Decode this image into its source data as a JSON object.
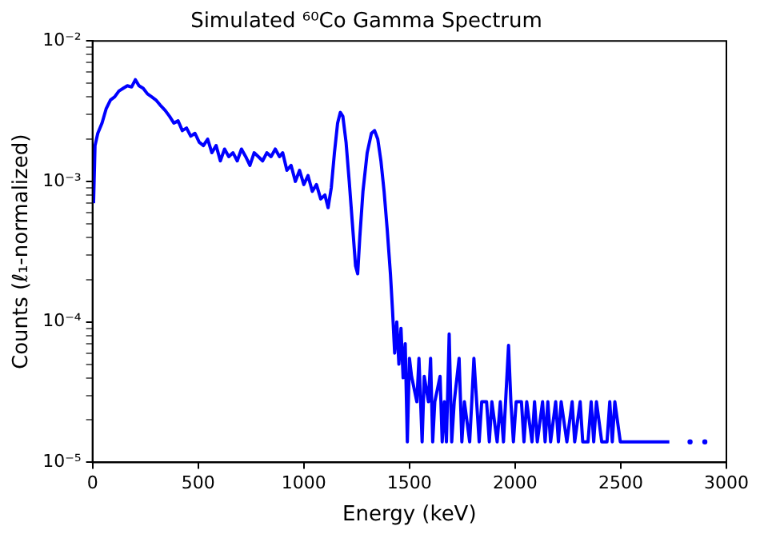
{
  "chart_data": {
    "type": "line",
    "title": "Simulated ⁶⁰Co Gamma Spectrum",
    "xlabel": "Energy (keV)",
    "ylabel": "Counts (ℓ₁-normalized)",
    "log": "y",
    "grid": false,
    "legend": false,
    "marker": "none",
    "line_style": "solid",
    "xlim": [
      0,
      3000
    ],
    "xticks": [
      0,
      500,
      1000,
      1500,
      2000,
      2500,
      3000
    ],
    "ylim": [
      1e-05,
      0.01
    ],
    "yticks": [
      {
        "value": 1e-05,
        "label": "10⁻⁵"
      },
      {
        "value": 2e-05,
        "label": null
      },
      {
        "value": 3e-05,
        "label": null
      },
      {
        "value": 4e-05,
        "label": null
      },
      {
        "value": 5e-05,
        "label": null
      },
      {
        "value": 6e-05,
        "label": null
      },
      {
        "value": 7e-05,
        "label": null
      },
      {
        "value": 8e-05,
        "label": null
      },
      {
        "value": 9e-05,
        "label": null
      },
      {
        "value": 0.0001,
        "label": "10⁻⁴"
      },
      {
        "value": 0.0002,
        "label": null
      },
      {
        "value": 0.0003,
        "label": null
      },
      {
        "value": 0.0004,
        "label": null
      },
      {
        "value": 0.0005,
        "label": null
      },
      {
        "value": 0.0006,
        "label": null
      },
      {
        "value": 0.0007,
        "label": null
      },
      {
        "value": 0.0008,
        "label": null
      },
      {
        "value": 0.0009,
        "label": null
      },
      {
        "value": 0.001,
        "label": "10⁻³"
      },
      {
        "value": 0.002,
        "label": null
      },
      {
        "value": 0.003,
        "label": null
      },
      {
        "value": 0.004,
        "label": null
      },
      {
        "value": 0.005,
        "label": null
      },
      {
        "value": 0.006,
        "label": null
      },
      {
        "value": 0.007,
        "label": null
      },
      {
        "value": 0.008,
        "label": null
      },
      {
        "value": 0.009,
        "label": null
      },
      {
        "value": 0.01,
        "label": "10⁻²"
      }
    ],
    "series": [
      {
        "color": "#0000ff",
        "x": [
          5,
          12,
          25,
          45,
          65,
          85,
          105,
          125,
          145,
          165,
          185,
          203,
          220,
          240,
          260,
          280,
          300,
          320,
          344,
          365,
          385,
          405,
          425,
          445,
          465,
          485,
          505,
          525,
          545,
          565,
          585,
          605,
          625,
          645,
          665,
          685,
          705,
          725,
          745,
          765,
          785,
          805,
          825,
          845,
          865,
          885,
          900,
          920,
          940,
          960,
          980,
          1000,
          1020,
          1040,
          1060,
          1080,
          1100,
          1115,
          1130,
          1145,
          1160,
          1173,
          1185,
          1200,
          1215,
          1230,
          1245,
          1255,
          1265,
          1280,
          1300,
          1320,
          1335,
          1350,
          1365,
          1380,
          1395,
          1410,
          1420,
          1430,
          1440,
          1450,
          1460,
          1470,
          1480,
          1490,
          1500,
          1510,
          1535,
          1545,
          1560,
          1570,
          1590,
          1600,
          1610,
          1620,
          1645,
          1655,
          1665,
          1675,
          1688,
          1700,
          1712,
          1735,
          1748,
          1760,
          1785,
          1795,
          1805,
          1830,
          1842,
          1865,
          1878,
          1890,
          1915,
          1930,
          1945,
          1969,
          1980,
          1992,
          2005,
          2030,
          2042,
          2055,
          2080,
          2092,
          2105,
          2130,
          2142,
          2155,
          2168,
          2192,
          2205,
          2218,
          2245,
          2270,
          2282,
          2308,
          2320,
          2345,
          2360,
          2372,
          2385,
          2410,
          2435,
          2448,
          2460,
          2472,
          2498,
          2522,
          2568,
          2618,
          2672,
          2730
        ],
        "values": [
          0.0007,
          0.0018,
          0.0022,
          0.0026,
          0.0033,
          0.0038,
          0.004,
          0.0044,
          0.0046,
          0.0048,
          0.0047,
          0.0053,
          0.0048,
          0.0046,
          0.0042,
          0.004,
          0.0038,
          0.0035,
          0.0032,
          0.0029,
          0.0026,
          0.0027,
          0.0023,
          0.0024,
          0.0021,
          0.0022,
          0.0019,
          0.0018,
          0.002,
          0.0016,
          0.0018,
          0.0014,
          0.0017,
          0.0015,
          0.0016,
          0.0014,
          0.0017,
          0.0015,
          0.0013,
          0.0016,
          0.0015,
          0.0014,
          0.0016,
          0.0015,
          0.0017,
          0.0015,
          0.0016,
          0.0012,
          0.0013,
          0.001,
          0.0012,
          0.00095,
          0.0011,
          0.00085,
          0.00095,
          0.00075,
          0.0008,
          0.00065,
          0.0009,
          0.0016,
          0.0026,
          0.0031,
          0.0029,
          0.0019,
          0.001,
          0.0005,
          0.00025,
          0.00022,
          0.0004,
          0.00085,
          0.0016,
          0.0022,
          0.0023,
          0.002,
          0.0014,
          0.00085,
          0.00045,
          0.00022,
          0.00012,
          6e-05,
          0.0001,
          5e-05,
          9e-05,
          4e-05,
          7e-05,
          1.4e-05,
          5.5e-05,
          4.1e-05,
          2.7e-05,
          5.5e-05,
          1.4e-05,
          4.1e-05,
          2.7e-05,
          5.5e-05,
          1.4e-05,
          2.7e-05,
          4.1e-05,
          1.4e-05,
          2.7e-05,
          1.4e-05,
          8.2e-05,
          1.4e-05,
          2.7e-05,
          5.5e-05,
          1.4e-05,
          2.7e-05,
          1.4e-05,
          2.7e-05,
          5.5e-05,
          1.4e-05,
          2.7e-05,
          2.7e-05,
          1.4e-05,
          2.7e-05,
          1.4e-05,
          2.7e-05,
          1.4e-05,
          6.8e-05,
          2.7e-05,
          1.4e-05,
          2.7e-05,
          2.7e-05,
          1.4e-05,
          2.7e-05,
          1.4e-05,
          2.7e-05,
          1.4e-05,
          2.7e-05,
          1.4e-05,
          2.7e-05,
          1.4e-05,
          2.7e-05,
          1.4e-05,
          2.7e-05,
          1.4e-05,
          2.7e-05,
          1.4e-05,
          2.7e-05,
          1.4e-05,
          1.4e-05,
          2.7e-05,
          1.4e-05,
          2.7e-05,
          1.4e-05,
          1.4e-05,
          2.7e-05,
          1.4e-05,
          2.7e-05,
          1.4e-05,
          1.4e-05,
          1.4e-05,
          1.4e-05,
          1.4e-05,
          1.4e-05
        ]
      },
      {
        "color": "#0000ff",
        "type": "scatter",
        "marker": "circle",
        "x": [
          2828,
          2898
        ],
        "values": [
          1.4e-05,
          1.4e-05
        ]
      }
    ]
  }
}
